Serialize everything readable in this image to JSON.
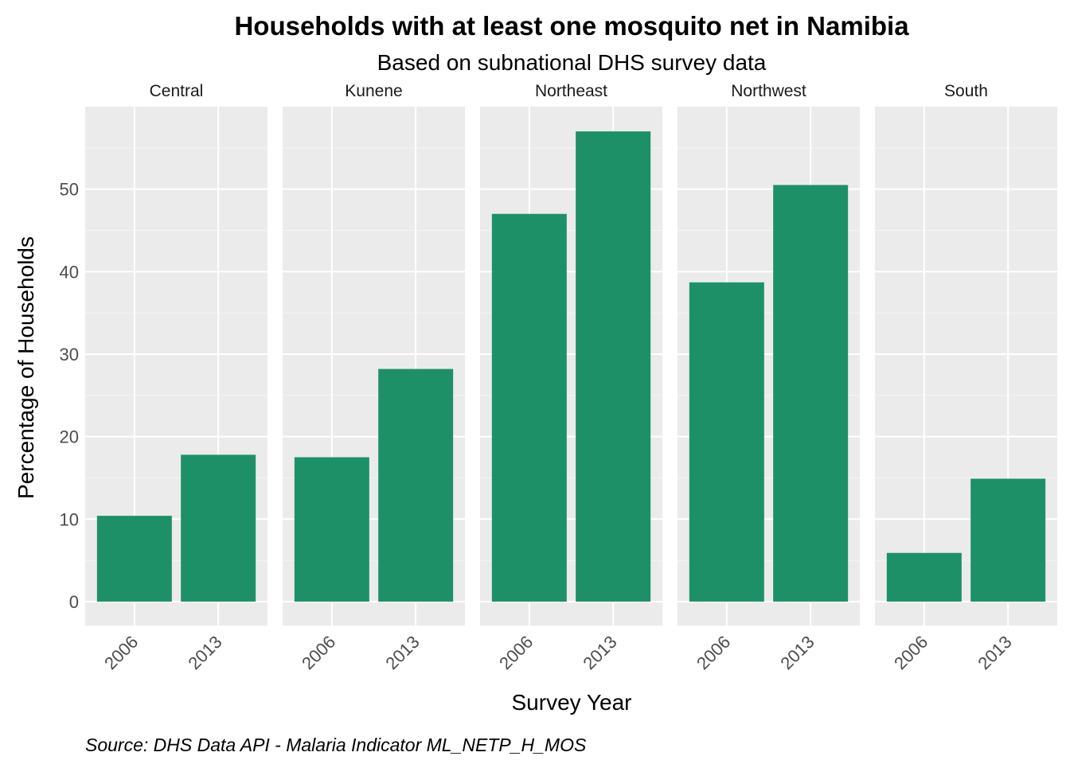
{
  "chart_data": {
    "type": "bar",
    "title": "Households with at least one mosquito net in Namibia",
    "subtitle": "Based on subnational DHS survey data",
    "xlabel": "Survey Year",
    "ylabel": "Percentage of Households",
    "caption": "Source: DHS Data API - Malaria Indicator ML_NETP_H_MOS",
    "categories": [
      "2006",
      "2013"
    ],
    "ylim": [
      -2.9,
      60
    ],
    "yticks": [
      0,
      10,
      20,
      30,
      40,
      50
    ],
    "grid": true,
    "bar_color": "#1e9068",
    "panel_color": "#ebebeb",
    "facets": [
      {
        "name": "Central",
        "values": [
          10.4,
          17.8
        ]
      },
      {
        "name": "Kunene",
        "values": [
          17.5,
          28.2
        ]
      },
      {
        "name": "Northeast",
        "values": [
          47.0,
          57.0
        ]
      },
      {
        "name": "Northwest",
        "values": [
          38.7,
          50.5
        ]
      },
      {
        "name": "South",
        "values": [
          5.9,
          14.9
        ]
      }
    ]
  }
}
